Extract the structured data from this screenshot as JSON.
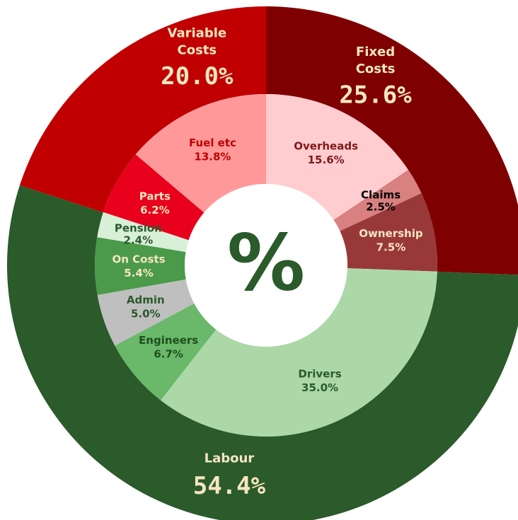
{
  "chart_data": {
    "type": "sunburst",
    "center_label": "%",
    "center_color": "#2b5a2b",
    "outer_label_color": "#f5e6c0",
    "groups": [
      {
        "name": "Fixed Costs",
        "value": 25.6,
        "value_label": "25.6%",
        "color": "#7f0000",
        "children": [
          {
            "name": "Overheads",
            "value": 15.6,
            "value_label": "15.6%",
            "color": "#ffccd0",
            "label_color": "#7f1a1a"
          },
          {
            "name": "Claims",
            "value": 2.5,
            "value_label": "2.5%",
            "color": "#d98080",
            "label_color": "#000000"
          },
          {
            "name": "Ownership",
            "value": 7.5,
            "value_label": "7.5%",
            "color": "#993838",
            "label_color": "#f5e6c0"
          }
        ]
      },
      {
        "name": "Labour",
        "value": 54.4,
        "value_label": "54.4%",
        "color": "#2b5a2b",
        "children": [
          {
            "name": "Drivers",
            "value": 35.0,
            "value_label": "35.0%",
            "color": "#acd8a8",
            "label_color": "#2b5a2b"
          },
          {
            "name": "Engineers",
            "value": 6.7,
            "value_label": "6.7%",
            "color": "#6ab86a",
            "label_color": "#1f4f1f"
          },
          {
            "name": "Admin",
            "value": 5.0,
            "value_label": "5.0%",
            "color": "#bfbfbf",
            "label_color": "#2b5a2b"
          },
          {
            "name": "On Costs",
            "value": 5.4,
            "value_label": "5.4%",
            "color": "#4a9a4a",
            "label_color": "#f5e6c0"
          },
          {
            "name": "Pension",
            "value": 2.4,
            "value_label": "2.4%",
            "color": "#d8efd8",
            "label_color": "#2b5a2b"
          }
        ]
      },
      {
        "name": "Variable Costs",
        "value": 20.0,
        "value_label": "20.0%",
        "color": "#c00000",
        "children": [
          {
            "name": "Parts",
            "value": 6.2,
            "value_label": "6.2%",
            "color": "#e8001c",
            "label_color": "#f5e6c0"
          },
          {
            "name": "Fuel etc",
            "value": 13.8,
            "value_label": "13.8%",
            "color": "#ff9999",
            "label_color": "#c00000"
          }
        ]
      }
    ]
  }
}
